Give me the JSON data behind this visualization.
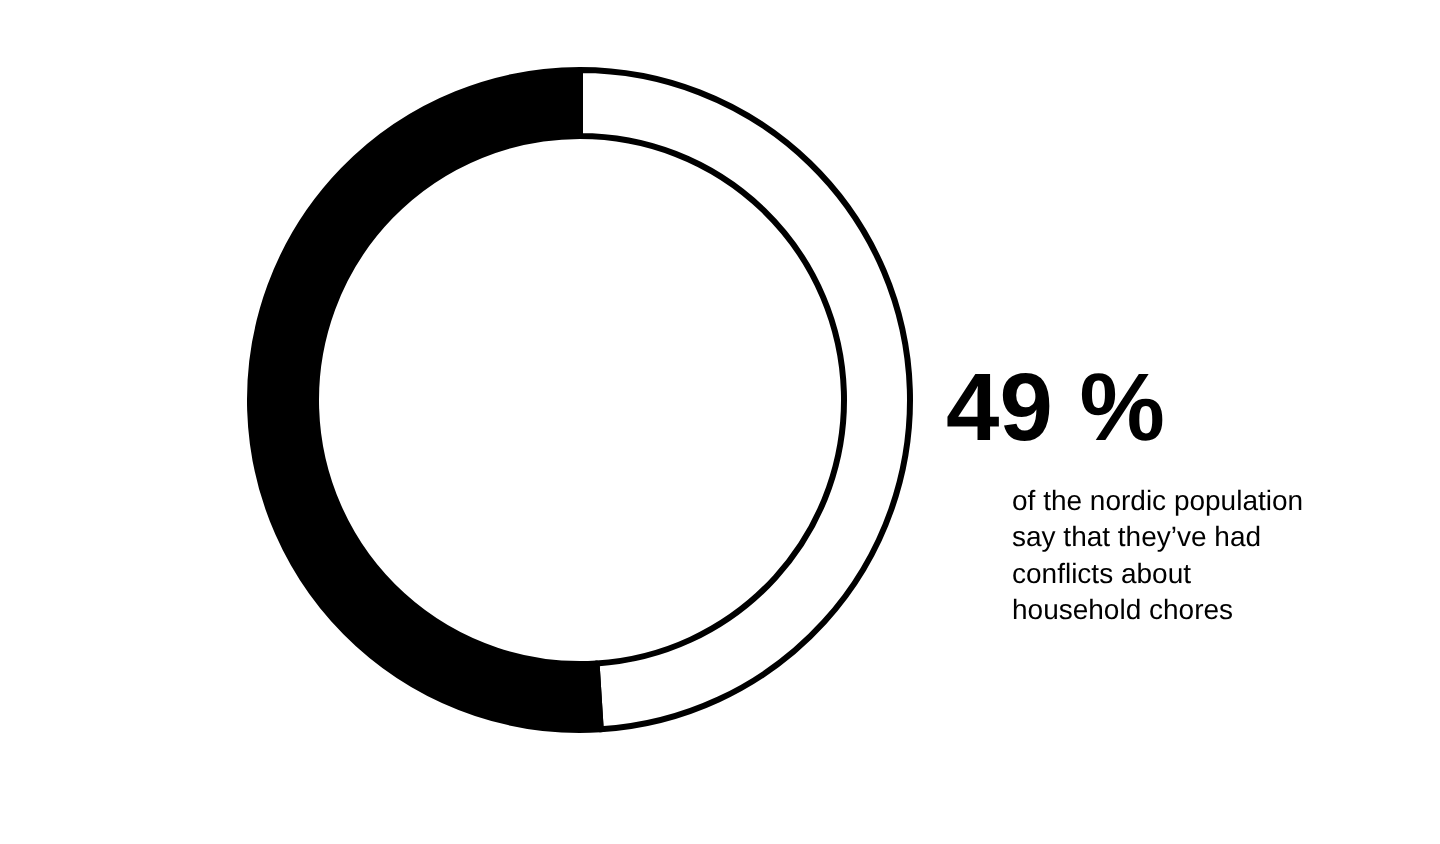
{
  "chart_data": {
    "type": "donut",
    "categories": [
      null,
      null
    ],
    "values": [
      49,
      51
    ],
    "colors": [
      "#ffffff",
      "#000000"
    ],
    "annotations": [
      "49 %",
      "of the nordic population\nsay that they’ve had\nconflicts about\nhousehold chores"
    ]
  }
}
